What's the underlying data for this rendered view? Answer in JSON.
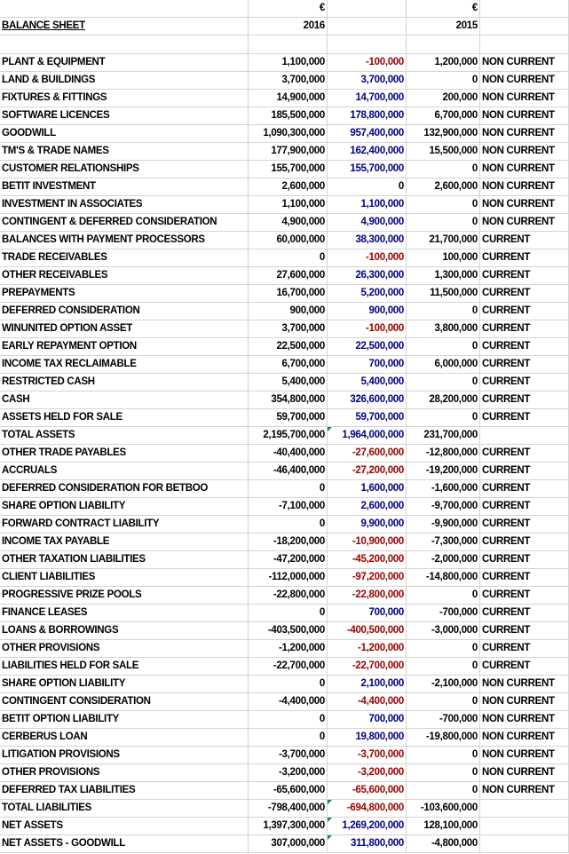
{
  "header": {
    "currency_2016": "€",
    "title": "BALANCE SHEET",
    "year_2016": "2016",
    "currency_2015": "€",
    "year_2015": "2015"
  },
  "table": {
    "rows": [
      [
        "PLANT & EQUIPMENT",
        "1,100,000",
        "-100,000",
        "1,200,000",
        "NON CURRENT"
      ],
      [
        "LAND & BUILDINGS",
        "3,700,000",
        "3,700,000",
        "0",
        "NON CURRENT"
      ],
      [
        "FIXTURES & FITTINGS",
        "14,900,000",
        "14,700,000",
        "200,000",
        "NON CURRENT"
      ],
      [
        "SOFTWARE LICENCES",
        "185,500,000",
        "178,800,000",
        "6,700,000",
        "NON CURRENT"
      ],
      [
        "GOODWILL",
        "1,090,300,000",
        "957,400,000",
        "132,900,000",
        "NON CURRENT"
      ],
      [
        "TM'S & TRADE NAMES",
        "177,900,000",
        "162,400,000",
        "15,500,000",
        "NON CURRENT"
      ],
      [
        "CUSTOMER RELATIONSHIPS",
        "155,700,000",
        "155,700,000",
        "0",
        "NON CURRENT"
      ],
      [
        "BETIT INVESTMENT",
        "2,600,000",
        "0",
        "2,600,000",
        "NON CURRENT"
      ],
      [
        "INVESTMENT IN ASSOCIATES",
        "1,100,000",
        "1,100,000",
        "0",
        "NON CURRENT"
      ],
      [
        "CONTINGENT & DEFERRED CONSIDERATION",
        "4,900,000",
        "4,900,000",
        "0",
        "NON CURRENT"
      ],
      [
        "BALANCES WITH PAYMENT PROCESSORS",
        "60,000,000",
        "38,300,000",
        "21,700,000",
        "CURRENT"
      ],
      [
        "TRADE RECEIVABLES",
        "0",
        "-100,000",
        "100,000",
        "CURRENT"
      ],
      [
        "OTHER RECEIVABLES",
        "27,600,000",
        "26,300,000",
        "1,300,000",
        "CURRENT"
      ],
      [
        "PREPAYMENTS",
        "16,700,000",
        "5,200,000",
        "11,500,000",
        "CURRENT"
      ],
      [
        "DEFERRED CONSIDERATION",
        "900,000",
        "900,000",
        "0",
        "CURRENT"
      ],
      [
        "WINUNITED OPTION ASSET",
        "3,700,000",
        "-100,000",
        "3,800,000",
        "CURRENT"
      ],
      [
        "EARLY REPAYMENT OPTION",
        "22,500,000",
        "22,500,000",
        "0",
        "CURRENT"
      ],
      [
        "INCOME TAX RECLAIMABLE",
        "6,700,000",
        "700,000",
        "6,000,000",
        "CURRENT"
      ],
      [
        "RESTRICTED CASH",
        "5,400,000",
        "5,400,000",
        "0",
        "CURRENT"
      ],
      [
        "CASH",
        "354,800,000",
        "326,600,000",
        "28,200,000",
        "CURRENT"
      ],
      [
        "ASSETS HELD FOR SALE",
        "59,700,000",
        "59,700,000",
        "0",
        "CURRENT"
      ],
      [
        "TOTAL ASSETS",
        "2,195,700,000",
        "1,964,000,000",
        "231,700,000"
      ],
      [
        "OTHER TRADE PAYABLES",
        "-40,400,000",
        "-27,600,000",
        "-12,800,000",
        "CURRENT"
      ],
      [
        "ACCRUALS",
        "-46,400,000",
        "-27,200,000",
        "-19,200,000",
        "CURRENT"
      ],
      [
        "DEFERRED CONSIDERATION FOR BETBOO",
        "0",
        "1,600,000",
        "-1,600,000",
        "CURRENT"
      ],
      [
        "SHARE OPTION LIABILITY",
        "-7,100,000",
        "2,600,000",
        "-9,700,000",
        "CURRENT"
      ],
      [
        "FORWARD CONTRACT LIABILITY",
        "0",
        "9,900,000",
        "-9,900,000",
        "CURRENT"
      ],
      [
        "INCOME TAX PAYABLE",
        "-18,200,000",
        "-10,900,000",
        "-7,300,000",
        "CURRENT"
      ],
      [
        "OTHER TAXATION LIABILITIES",
        "-47,200,000",
        "-45,200,000",
        "-2,000,000",
        "CURRENT"
      ],
      [
        "CLIENT LIABILITIES",
        "-112,000,000",
        "-97,200,000",
        "-14,800,000",
        "CURRENT"
      ],
      [
        "PROGRESSIVE PRIZE POOLS",
        "-22,800,000",
        "-22,800,000",
        "0",
        "CURRENT"
      ],
      [
        "FINANCE LEASES",
        "0",
        "700,000",
        "-700,000",
        "CURRENT"
      ],
      [
        "LOANS & BORROWINGS",
        "-403,500,000",
        "-400,500,000",
        "-3,000,000",
        "CURRENT"
      ],
      [
        "OTHER PROVISIONS",
        "-1,200,000",
        "-1,200,000",
        "0",
        "CURRENT"
      ],
      [
        "LIABILITIES HELD FOR SALE",
        "-22,700,000",
        "-22,700,000",
        "0",
        "CURRENT"
      ],
      [
        "SHARE OPTION LIABILITY",
        "0",
        "2,100,000",
        "-2,100,000",
        "NON CURRENT"
      ],
      [
        "CONTINGENT CONSIDERATION",
        "-4,400,000",
        "-4,400,000",
        "0",
        "NON CURRENT"
      ],
      [
        "BETIT OPTION LIABILITY",
        "0",
        "700,000",
        "-700,000",
        "NON CURRENT"
      ],
      [
        "CERBERUS LOAN",
        "0",
        "19,800,000",
        "-19,800,000",
        "NON CURRENT"
      ],
      [
        "LITIGATION PROVISIONS",
        "-3,700,000",
        "-3,700,000",
        "0",
        "NON CURRENT"
      ],
      [
        "OTHER PROVISIONS",
        "-3,200,000",
        "-3,200,000",
        "0",
        "NON CURRENT"
      ],
      [
        "DEFERRED TAX LIABILITIES",
        "-65,600,000",
        "-65,600,000",
        "0",
        "NON CURRENT"
      ],
      [
        "TOTAL LIABILITIES",
        "-798,400,000",
        "-694,800,000",
        "-103,600,000"
      ],
      [
        "NET ASSETS",
        "1,397,300,000",
        "1,269,200,000",
        "128,100,000"
      ],
      [
        "NET ASSETS - GOODWILL",
        "307,000,000",
        "311,800,000",
        "-4,800,000"
      ]
    ]
  }
}
